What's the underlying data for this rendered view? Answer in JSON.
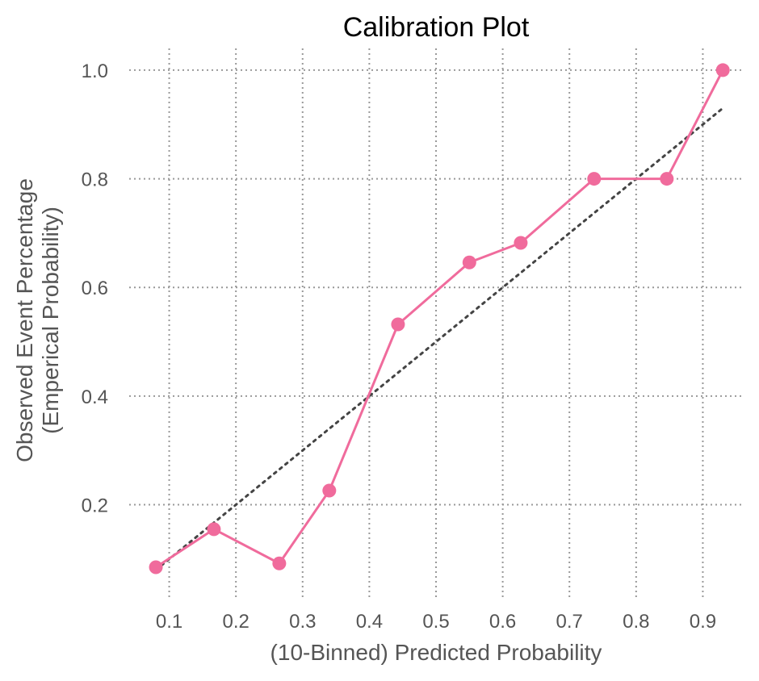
{
  "colors": {
    "calibration": "#f06b9c",
    "reference": "#444444",
    "grid": "#999999",
    "text": "#555555",
    "title": "#000000"
  },
  "chart_data": {
    "type": "line",
    "title": "Calibration Plot",
    "xlabel": "(10-Binned) Predicted Probability",
    "ylabel_line1": "Observed Event Percentage",
    "ylabel_line2": "(Emperical Probability)",
    "xlim": [
      0.04,
      0.96
    ],
    "ylim": [
      0.03,
      1.04
    ],
    "grid": true,
    "x_ticks": [
      0.1,
      0.2,
      0.3,
      0.4,
      0.5,
      0.6,
      0.7,
      0.8,
      0.9
    ],
    "x_tick_labels": [
      "0.1",
      "0.2",
      "0.3",
      "0.4",
      "0.5",
      "0.6",
      "0.7",
      "0.8",
      "0.9"
    ],
    "y_ticks": [
      0.2,
      0.4,
      0.6,
      0.8,
      1.0
    ],
    "y_tick_labels": [
      "0.2",
      "0.4",
      "0.6",
      "0.8",
      "1.0"
    ],
    "series": [
      {
        "style": "solid-markers",
        "x": [
          0.08,
          0.167,
          0.265,
          0.34,
          0.443,
          0.55,
          0.627,
          0.737,
          0.846,
          0.93
        ],
        "y": [
          0.085,
          0.155,
          0.092,
          0.226,
          0.532,
          0.646,
          0.682,
          0.8,
          0.8,
          1.0
        ]
      },
      {
        "style": "dotted",
        "x": [
          0.08,
          0.93
        ],
        "y": [
          0.08,
          0.93
        ]
      }
    ]
  }
}
